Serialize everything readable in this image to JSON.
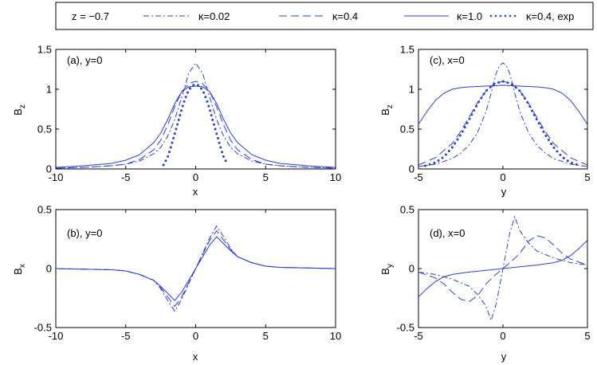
{
  "legend": {
    "title": "z = −0.7",
    "items": [
      {
        "label": "κ=0.02",
        "style": "dashdot"
      },
      {
        "label": "κ=0.4",
        "style": "dashed"
      },
      {
        "label": "κ=1.0",
        "style": "solid"
      },
      {
        "label": "κ=0.4, exp",
        "style": "dotted"
      }
    ]
  },
  "line_color": "#2b3fe0",
  "chart_data": [
    {
      "id": "a",
      "type": "line",
      "annotation": "(a), y=0",
      "xlabel": "x",
      "ylabel": "B",
      "ylabel_sub": "z",
      "xlim": [
        -10,
        10
      ],
      "ylim": [
        0,
        1.5
      ],
      "xticks": [
        "-10",
        "-5",
        "0",
        "5",
        "10"
      ],
      "xtick_values": [
        -10,
        -5,
        0,
        5,
        10
      ],
      "yticks": [
        "0",
        "0.5",
        "1",
        "1.5"
      ],
      "ytick_values": [
        0,
        0.5,
        1,
        1.5
      ],
      "series": [
        {
          "name": "κ=0.02",
          "style": "dashdot",
          "x": [
            -10,
            -8,
            -6,
            -5,
            -4,
            -3,
            -2.5,
            -2,
            -1.5,
            -1,
            -0.5,
            0,
            0.5,
            1,
            1.5,
            2,
            2.5,
            3,
            4,
            5,
            6,
            8,
            10
          ],
          "y": [
            0.01,
            0.02,
            0.04,
            0.06,
            0.1,
            0.19,
            0.27,
            0.41,
            0.62,
            0.9,
            1.2,
            1.33,
            1.2,
            0.9,
            0.62,
            0.41,
            0.27,
            0.19,
            0.1,
            0.06,
            0.04,
            0.02,
            0.01
          ]
        },
        {
          "name": "κ=0.4",
          "style": "dashed",
          "x": [
            -10,
            -8,
            -6,
            -5,
            -4,
            -3,
            -2.5,
            -2,
            -1.5,
            -1,
            -0.5,
            0,
            0.5,
            1,
            1.5,
            2,
            2.5,
            3,
            4,
            5,
            6,
            8,
            10
          ],
          "y": [
            0.01,
            0.02,
            0.04,
            0.06,
            0.12,
            0.24,
            0.36,
            0.55,
            0.78,
            0.97,
            1.07,
            1.1,
            1.07,
            0.97,
            0.78,
            0.55,
            0.36,
            0.24,
            0.12,
            0.06,
            0.04,
            0.02,
            0.01
          ]
        },
        {
          "name": "κ=1.0",
          "style": "solid",
          "x": [
            -10,
            -8,
            -6,
            -5,
            -4,
            -3,
            -2.5,
            -2,
            -1.5,
            -1,
            -0.5,
            0,
            0.5,
            1,
            1.5,
            2,
            2.5,
            3,
            4,
            5,
            6,
            8,
            10
          ],
          "y": [
            0.02,
            0.04,
            0.07,
            0.11,
            0.18,
            0.33,
            0.45,
            0.62,
            0.82,
            0.97,
            1.03,
            1.04,
            1.03,
            0.97,
            0.82,
            0.62,
            0.45,
            0.33,
            0.18,
            0.11,
            0.07,
            0.04,
            0.02
          ]
        },
        {
          "name": "κ=0.4, exp",
          "style": "dotted",
          "x": [
            -2.3,
            -2,
            -1.8,
            -1.6,
            -1.4,
            -1.2,
            -1,
            -0.8,
            -0.6,
            -0.4,
            -0.2,
            0,
            0.2,
            0.4,
            0.6,
            0.8,
            1,
            1.2,
            1.4,
            1.6,
            1.8,
            2,
            2.3
          ],
          "y": [
            0.05,
            0.15,
            0.26,
            0.38,
            0.5,
            0.62,
            0.75,
            0.86,
            0.95,
            1.01,
            1.05,
            1.06,
            1.05,
            1.01,
            0.95,
            0.86,
            0.75,
            0.62,
            0.5,
            0.38,
            0.26,
            0.15,
            0.05
          ]
        }
      ]
    },
    {
      "id": "b",
      "type": "line",
      "annotation": "(b), y=0",
      "xlabel": "x",
      "ylabel": "B",
      "ylabel_sub": "x",
      "xlim": [
        -10,
        10
      ],
      "ylim": [
        -0.5,
        0.5
      ],
      "xticks": [
        "-10",
        "-5",
        "0",
        "5",
        "10"
      ],
      "xtick_values": [
        -10,
        -5,
        0,
        5,
        10
      ],
      "yticks": [
        "-0.5",
        "0",
        "0.5"
      ],
      "ytick_values": [
        -0.5,
        0,
        0.5
      ],
      "series": [
        {
          "name": "κ=0.02",
          "style": "dashdot",
          "x": [
            -10,
            -6,
            -5,
            -4,
            -3,
            -2.5,
            -2,
            -1.5,
            -1,
            -0.5,
            0,
            0.5,
            1,
            1.5,
            2,
            2.5,
            3,
            4,
            5,
            6,
            10
          ],
          "y": [
            0,
            -0.01,
            -0.02,
            -0.05,
            -0.1,
            -0.17,
            -0.27,
            -0.36,
            -0.26,
            -0.13,
            0,
            0.13,
            0.26,
            0.36,
            0.27,
            0.17,
            0.1,
            0.05,
            0.02,
            0.01,
            0
          ]
        },
        {
          "name": "κ=0.4",
          "style": "dashed",
          "x": [
            -10,
            -6,
            -5,
            -4,
            -3,
            -2.5,
            -2,
            -1.5,
            -1,
            -0.5,
            0,
            0.5,
            1,
            1.5,
            2,
            2.5,
            3,
            4,
            5,
            6,
            10
          ],
          "y": [
            0,
            -0.01,
            -0.02,
            -0.05,
            -0.1,
            -0.16,
            -0.24,
            -0.32,
            -0.24,
            -0.12,
            0,
            0.12,
            0.24,
            0.32,
            0.24,
            0.16,
            0.1,
            0.05,
            0.02,
            0.01,
            0
          ]
        },
        {
          "name": "κ=1.0",
          "style": "solid",
          "x": [
            -10,
            -6,
            -5,
            -4,
            -3,
            -2.5,
            -2,
            -1.5,
            -1,
            -0.5,
            0,
            0.5,
            1,
            1.5,
            2,
            2.5,
            3,
            4,
            5,
            6,
            10
          ],
          "y": [
            0,
            -0.01,
            -0.02,
            -0.05,
            -0.1,
            -0.15,
            -0.21,
            -0.27,
            -0.2,
            -0.1,
            0,
            0.1,
            0.2,
            0.27,
            0.21,
            0.15,
            0.1,
            0.05,
            0.02,
            0.01,
            0
          ]
        }
      ]
    },
    {
      "id": "c",
      "type": "line",
      "annotation": "(c), x=0",
      "xlabel": "y",
      "ylabel": "B",
      "ylabel_sub": "z",
      "xlim": [
        -5,
        5
      ],
      "ylim": [
        0,
        1.5
      ],
      "xticks": [
        "-5",
        "0",
        "5"
      ],
      "xtick_values": [
        -5,
        0,
        5
      ],
      "yticks": [
        "0",
        "0.5",
        "1",
        "1.5"
      ],
      "ytick_values": [
        0,
        0.5,
        1,
        1.5
      ],
      "series": [
        {
          "name": "κ=0.02",
          "style": "dashdot",
          "x": [
            -5,
            -4,
            -3,
            -2.5,
            -2,
            -1.5,
            -1,
            -0.7,
            -0.4,
            -0.2,
            0,
            0.2,
            0.4,
            0.7,
            1,
            1.5,
            2,
            2.5,
            3,
            4,
            5
          ],
          "y": [
            0.03,
            0.06,
            0.13,
            0.2,
            0.3,
            0.46,
            0.72,
            0.95,
            1.2,
            1.3,
            1.33,
            1.3,
            1.2,
            0.95,
            0.72,
            0.46,
            0.3,
            0.2,
            0.13,
            0.06,
            0.03
          ]
        },
        {
          "name": "κ=0.4",
          "style": "dashed",
          "x": [
            -5,
            -4,
            -3,
            -2.5,
            -2,
            -1.5,
            -1,
            -0.5,
            0,
            0.5,
            1,
            1.5,
            2,
            2.5,
            3,
            4,
            5
          ],
          "y": [
            0.05,
            0.14,
            0.32,
            0.47,
            0.65,
            0.83,
            0.98,
            1.07,
            1.1,
            1.07,
            0.98,
            0.83,
            0.65,
            0.47,
            0.32,
            0.14,
            0.05
          ]
        },
        {
          "name": "κ=1.0",
          "style": "solid",
          "x": [
            -5,
            -4.5,
            -4,
            -3.5,
            -3,
            -2.5,
            -2,
            -1,
            0,
            1,
            2,
            2.5,
            3,
            3.5,
            4,
            4.5,
            5
          ],
          "y": [
            0.56,
            0.72,
            0.86,
            0.95,
            1.0,
            1.02,
            1.03,
            1.04,
            1.05,
            1.04,
            1.03,
            1.02,
            1.0,
            0.95,
            0.86,
            0.72,
            0.56
          ]
        },
        {
          "name": "κ=0.4, exp",
          "style": "dotted",
          "x": [
            -4.6,
            -4,
            -3.5,
            -3,
            -2.5,
            -2,
            -1.5,
            -1,
            -0.5,
            0,
            0.5,
            1,
            1.5,
            2,
            2.5,
            3,
            3.5,
            4,
            4.6
          ],
          "y": [
            0.04,
            0.08,
            0.15,
            0.27,
            0.43,
            0.62,
            0.82,
            0.98,
            1.07,
            1.1,
            1.07,
            0.98,
            0.82,
            0.62,
            0.43,
            0.27,
            0.15,
            0.08,
            0.04
          ]
        }
      ]
    },
    {
      "id": "d",
      "type": "line",
      "annotation": "(d), x=0",
      "xlabel": "y",
      "ylabel": "B",
      "ylabel_sub": "y",
      "xlim": [
        -5,
        5
      ],
      "ylim": [
        -0.5,
        0.5
      ],
      "xticks": [
        "-5",
        "0",
        "5"
      ],
      "xtick_values": [
        -5,
        0,
        5
      ],
      "yticks": [
        "-0.5",
        "0",
        "0.5"
      ],
      "ytick_values": [
        -0.5,
        0,
        0.5
      ],
      "series": [
        {
          "name": "κ=0.02",
          "style": "dashdot",
          "x": [
            -5,
            -4,
            -3,
            -2,
            -1.5,
            -1,
            -0.7,
            -0.4,
            0,
            0.4,
            0.7,
            1,
            1.5,
            2,
            3,
            4,
            5
          ],
          "y": [
            -0.03,
            -0.05,
            -0.09,
            -0.15,
            -0.22,
            -0.32,
            -0.44,
            -0.3,
            0,
            0.3,
            0.44,
            0.32,
            0.22,
            0.15,
            0.09,
            0.05,
            0.03
          ]
        },
        {
          "name": "κ=0.4",
          "style": "dashed",
          "x": [
            -5,
            -4,
            -3.5,
            -3,
            -2.5,
            -2,
            -1.5,
            -1,
            -0.5,
            0,
            0.5,
            1,
            1.5,
            2,
            2.5,
            3,
            3.5,
            4,
            5
          ],
          "y": [
            -0.03,
            -0.08,
            -0.13,
            -0.2,
            -0.26,
            -0.28,
            -0.23,
            -0.13,
            -0.06,
            0,
            0.06,
            0.13,
            0.23,
            0.28,
            0.26,
            0.2,
            0.13,
            0.08,
            0.03
          ]
        },
        {
          "name": "κ=1.0",
          "style": "solid",
          "x": [
            -5,
            -4.5,
            -4,
            -3.5,
            -3,
            -2.5,
            -2,
            -1,
            0,
            1,
            2,
            2.5,
            3,
            3.5,
            4,
            4.5,
            5
          ],
          "y": [
            -0.24,
            -0.17,
            -0.11,
            -0.07,
            -0.05,
            -0.04,
            -0.03,
            -0.015,
            0,
            0.015,
            0.03,
            0.04,
            0.05,
            0.07,
            0.11,
            0.17,
            0.24
          ]
        }
      ]
    }
  ]
}
